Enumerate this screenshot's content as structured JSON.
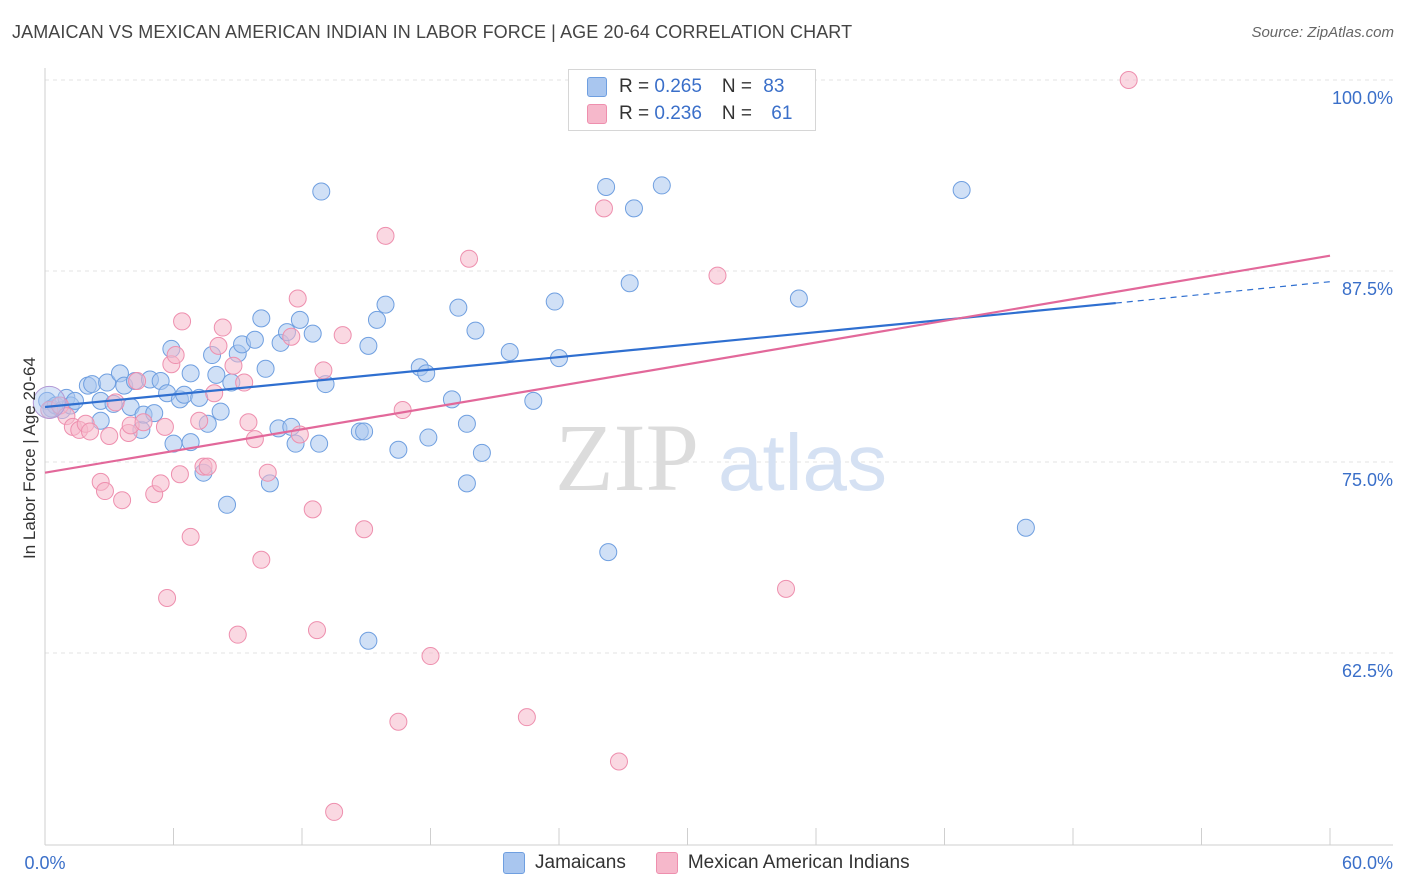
{
  "title": "JAMAICAN VS MEXICAN AMERICAN INDIAN IN LABOR FORCE | AGE 20-64 CORRELATION CHART",
  "source": "Source: ZipAtlas.com",
  "watermark": {
    "zip": "ZIP",
    "atlas": "atlas"
  },
  "legend_top": {
    "rows": [
      {
        "r_label": "R = ",
        "r_value": "0.265",
        "n_label": "N = ",
        "n_value": "83",
        "color": "#a9c6ef"
      },
      {
        "r_label": "R = ",
        "r_value": "0.236",
        "n_label": "N = ",
        "n_value": "61",
        "color": "#f6b8cb"
      }
    ]
  },
  "chart_data": {
    "type": "scatter",
    "title": "JAMAICAN VS MEXICAN AMERICAN INDIAN IN LABOR FORCE | AGE 20-64 CORRELATION CHART",
    "xlabel": "",
    "ylabel": "In Labor Force | Age 20-64",
    "xlim": [
      0,
      60
    ],
    "ylim": [
      50,
      101
    ],
    "x_tick_labels": [
      "0.0%",
      "60.0%"
    ],
    "y_ticks": [
      62.5,
      75.0,
      87.5,
      100.0
    ],
    "y_tick_labels": [
      "62.5%",
      "75.0%",
      "87.5%",
      "100.0%"
    ],
    "grid": true,
    "legend_position": "bottom",
    "series": [
      {
        "name": "Jamaicans",
        "color": "#6f9fe0",
        "fill": "#a9c6ef",
        "line_color": "#2f6fd0",
        "trend": {
          "x0": 0,
          "y0": 78.6,
          "x1": 50,
          "y1": 85.4,
          "dash_to_x": 60,
          "dash_to_y": 86.8
        },
        "points": [
          [
            0.1,
            79.0
          ],
          [
            0.3,
            78.5
          ],
          [
            0.5,
            78.7
          ],
          [
            0.8,
            78.4
          ],
          [
            1.0,
            79.2
          ],
          [
            1.2,
            78.7
          ],
          [
            1.4,
            79.0
          ],
          [
            2.0,
            80.0
          ],
          [
            2.2,
            80.1
          ],
          [
            2.6,
            79.0
          ],
          [
            2.6,
            77.7
          ],
          [
            2.9,
            80.2
          ],
          [
            3.2,
            78.8
          ],
          [
            3.5,
            80.8
          ],
          [
            3.7,
            80.0
          ],
          [
            4.0,
            78.6
          ],
          [
            4.2,
            80.3
          ],
          [
            4.5,
            77.1
          ],
          [
            4.6,
            78.1
          ],
          [
            4.9,
            80.4
          ],
          [
            5.1,
            78.2
          ],
          [
            5.4,
            80.3
          ],
          [
            5.7,
            79.5
          ],
          [
            5.9,
            82.4
          ],
          [
            6.0,
            76.2
          ],
          [
            6.3,
            79.1
          ],
          [
            6.5,
            79.4
          ],
          [
            6.8,
            76.3
          ],
          [
            6.8,
            80.8
          ],
          [
            7.2,
            79.2
          ],
          [
            7.4,
            74.3
          ],
          [
            7.6,
            77.5
          ],
          [
            7.8,
            82.0
          ],
          [
            8.0,
            80.7
          ],
          [
            8.2,
            78.3
          ],
          [
            8.5,
            72.2
          ],
          [
            8.7,
            80.2
          ],
          [
            9.0,
            82.1
          ],
          [
            9.2,
            82.7
          ],
          [
            9.8,
            83.0
          ],
          [
            10.1,
            84.4
          ],
          [
            10.3,
            81.1
          ],
          [
            10.5,
            73.6
          ],
          [
            10.9,
            77.2
          ],
          [
            11.0,
            82.8
          ],
          [
            11.3,
            83.5
          ],
          [
            11.5,
            77.3
          ],
          [
            11.7,
            76.2
          ],
          [
            11.9,
            84.3
          ],
          [
            12.5,
            83.4
          ],
          [
            12.8,
            76.2
          ],
          [
            12.9,
            92.7
          ],
          [
            13.1,
            80.1
          ],
          [
            14.7,
            77.0
          ],
          [
            14.9,
            77.0
          ],
          [
            15.1,
            82.6
          ],
          [
            15.1,
            63.3
          ],
          [
            15.5,
            84.3
          ],
          [
            15.9,
            85.3
          ],
          [
            16.5,
            75.8
          ],
          [
            17.5,
            81.2
          ],
          [
            17.8,
            80.8
          ],
          [
            17.9,
            76.6
          ],
          [
            19.0,
            79.1
          ],
          [
            19.3,
            85.1
          ],
          [
            19.7,
            77.5
          ],
          [
            19.7,
            73.6
          ],
          [
            20.1,
            83.6
          ],
          [
            20.4,
            75.6
          ],
          [
            21.7,
            82.2
          ],
          [
            22.8,
            79.0
          ],
          [
            23.8,
            85.5
          ],
          [
            24.0,
            81.8
          ],
          [
            26.2,
            93.0
          ],
          [
            26.3,
            69.1
          ],
          [
            27.3,
            86.7
          ],
          [
            27.5,
            91.6
          ],
          [
            28.8,
            93.1
          ],
          [
            35.2,
            85.7
          ],
          [
            42.8,
            92.8
          ],
          [
            45.8,
            70.7
          ]
        ]
      },
      {
        "name": "Mexican American Indians",
        "color": "#ee8fae",
        "fill": "#f6b8cb",
        "line_color": "#e2689a",
        "trend": {
          "x0": 0,
          "y0": 74.3,
          "x1": 60,
          "y1": 88.5
        },
        "points": [
          [
            0.2,
            78.4
          ],
          [
            0.7,
            78.7
          ],
          [
            1.0,
            78.0
          ],
          [
            1.3,
            77.3
          ],
          [
            1.6,
            77.1
          ],
          [
            1.9,
            77.5
          ],
          [
            2.1,
            77.0
          ],
          [
            2.6,
            73.7
          ],
          [
            2.8,
            73.1
          ],
          [
            3.0,
            76.7
          ],
          [
            3.3,
            78.9
          ],
          [
            3.6,
            72.5
          ],
          [
            3.9,
            76.9
          ],
          [
            4.0,
            77.4
          ],
          [
            4.3,
            80.3
          ],
          [
            4.6,
            77.6
          ],
          [
            5.1,
            72.9
          ],
          [
            5.4,
            73.6
          ],
          [
            5.6,
            77.3
          ],
          [
            5.7,
            66.1
          ],
          [
            5.9,
            81.4
          ],
          [
            6.1,
            82.0
          ],
          [
            6.3,
            74.2
          ],
          [
            6.4,
            84.2
          ],
          [
            6.8,
            70.1
          ],
          [
            7.2,
            77.7
          ],
          [
            7.4,
            74.7
          ],
          [
            7.6,
            74.7
          ],
          [
            7.9,
            79.5
          ],
          [
            8.1,
            82.6
          ],
          [
            8.3,
            83.8
          ],
          [
            8.8,
            81.3
          ],
          [
            9.0,
            63.7
          ],
          [
            9.3,
            80.2
          ],
          [
            9.5,
            77.6
          ],
          [
            9.8,
            76.5
          ],
          [
            10.1,
            68.6
          ],
          [
            10.4,
            74.3
          ],
          [
            11.5,
            83.2
          ],
          [
            11.8,
            85.7
          ],
          [
            11.9,
            76.8
          ],
          [
            12.5,
            71.9
          ],
          [
            12.7,
            64.0
          ],
          [
            13.0,
            81.0
          ],
          [
            13.5,
            52.1
          ],
          [
            13.9,
            83.3
          ],
          [
            14.9,
            70.6
          ],
          [
            15.9,
            89.8
          ],
          [
            16.5,
            58.0
          ],
          [
            16.7,
            78.4
          ],
          [
            18.0,
            62.3
          ],
          [
            19.8,
            88.3
          ],
          [
            22.5,
            58.3
          ],
          [
            26.1,
            91.6
          ],
          [
            26.8,
            55.4
          ],
          [
            28.8,
            100.0
          ],
          [
            31.4,
            87.2
          ],
          [
            34.6,
            66.7
          ],
          [
            50.6,
            100.0
          ]
        ]
      }
    ]
  }
}
